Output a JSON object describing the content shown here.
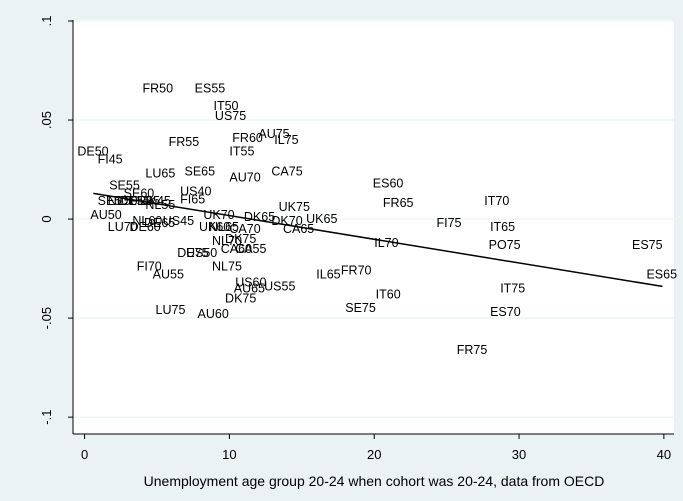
{
  "chart_data": {
    "type": "scatter",
    "title": "",
    "xlabel": "Unemployment age group 20-24 when cohort was 20-24, data from OECD",
    "ylabel": "",
    "xlim": [
      -0.8,
      40.7
    ],
    "ylim": [
      -0.1085,
      0.1005
    ],
    "xticks": [
      0,
      10,
      20,
      30,
      40
    ],
    "xtick_labels": [
      "0",
      "10",
      "20",
      "30",
      "40"
    ],
    "yticks": [
      -0.1,
      -0.05,
      0,
      0.05,
      0.1
    ],
    "ytick_labels": [
      "-.1",
      "-.05",
      "0",
      ".05",
      ".1"
    ],
    "grid": "horizontal",
    "legend": "none",
    "colors": {
      "background": "#eaf2f3",
      "plot_area": "#ffffff",
      "grid": "#eaf2f3",
      "text": "#000000",
      "line": "#000000"
    },
    "points": [
      {
        "label": "FR50",
        "x": 4.0,
        "y": 0.066
      },
      {
        "label": "ES55",
        "x": 7.6,
        "y": 0.066
      },
      {
        "label": "IT50",
        "x": 8.9,
        "y": 0.057
      },
      {
        "label": "US75",
        "x": 9.0,
        "y": 0.052
      },
      {
        "label": "AU75",
        "x": 12.0,
        "y": 0.043
      },
      {
        "label": "FR55",
        "x": 5.8,
        "y": 0.039
      },
      {
        "label": "FR60",
        "x": 10.2,
        "y": 0.041
      },
      {
        "label": "IT55",
        "x": 10.0,
        "y": 0.034
      },
      {
        "label": "IL75",
        "x": 13.1,
        "y": 0.04
      },
      {
        "label": "CA75",
        "x": 12.9,
        "y": 0.024
      },
      {
        "label": "DE50",
        "x": -0.5,
        "y": 0.034
      },
      {
        "label": "FI45",
        "x": 0.9,
        "y": 0.03
      },
      {
        "label": "LU65",
        "x": 4.2,
        "y": 0.023
      },
      {
        "label": "SE65",
        "x": 6.9,
        "y": 0.024
      },
      {
        "label": "AU70",
        "x": 10.0,
        "y": 0.021
      },
      {
        "label": "ES60",
        "x": 19.9,
        "y": 0.018
      },
      {
        "label": "SE55",
        "x": 1.7,
        "y": 0.017
      },
      {
        "label": "SE60",
        "x": 2.7,
        "y": 0.013
      },
      {
        "label": "US40",
        "x": 6.6,
        "y": 0.014
      },
      {
        "label": "FI65",
        "x": 6.6,
        "y": 0.01
      },
      {
        "label": "SE50",
        "x": 0.9,
        "y": 0.009
      },
      {
        "label": "NL50",
        "x": 1.6,
        "y": 0.009
      },
      {
        "label": "DE55",
        "x": 2.4,
        "y": 0.009
      },
      {
        "label": "FR35",
        "x": 3.1,
        "y": 0.009
      },
      {
        "label": "DK45",
        "x": 3.8,
        "y": 0.009
      },
      {
        "label": "NL55",
        "x": 4.2,
        "y": 0.007
      },
      {
        "label": "FR65",
        "x": 20.6,
        "y": 0.008
      },
      {
        "label": "IT70",
        "x": 27.6,
        "y": 0.009
      },
      {
        "label": "AU50",
        "x": 0.4,
        "y": 0.002
      },
      {
        "label": "LU70",
        "x": 1.6,
        "y": -0.004
      },
      {
        "label": "DE60",
        "x": 3.1,
        "y": -0.004
      },
      {
        "label": "NL60",
        "x": 3.3,
        "y": -0.001
      },
      {
        "label": "DE65",
        "x": 4.1,
        "y": -0.002
      },
      {
        "label": "US45",
        "x": 5.4,
        "y": -0.001
      },
      {
        "label": "UK70",
        "x": 8.2,
        "y": 0.002
      },
      {
        "label": "DK65",
        "x": 11.0,
        "y": 0.001
      },
      {
        "label": "UK75",
        "x": 13.4,
        "y": 0.006
      },
      {
        "label": "UK65",
        "x": 15.3,
        "y": 0.0
      },
      {
        "label": "DK70",
        "x": 12.9,
        "y": -0.001
      },
      {
        "label": "UK60",
        "x": 7.9,
        "y": -0.004
      },
      {
        "label": "NL65",
        "x": 8.6,
        "y": -0.004
      },
      {
        "label": "CA70",
        "x": 10.0,
        "y": -0.005
      },
      {
        "label": "CA65",
        "x": 13.7,
        "y": -0.005
      },
      {
        "label": "FI75",
        "x": 24.3,
        "y": -0.002
      },
      {
        "label": "IT65",
        "x": 28.0,
        "y": -0.004
      },
      {
        "label": "NL70",
        "x": 8.8,
        "y": -0.011
      },
      {
        "label": "DK75",
        "x": 9.7,
        "y": -0.01
      },
      {
        "label": "DE75",
        "x": 6.4,
        "y": -0.017
      },
      {
        "label": "US50",
        "x": 7.0,
        "y": -0.017
      },
      {
        "label": "CA60",
        "x": 9.4,
        "y": -0.015
      },
      {
        "label": "CA55",
        "x": 10.4,
        "y": -0.015
      },
      {
        "label": "IL70",
        "x": 20.0,
        "y": -0.012
      },
      {
        "label": "PO75",
        "x": 27.9,
        "y": -0.013
      },
      {
        "label": "ES75",
        "x": 37.8,
        "y": -0.013
      },
      {
        "label": "FI70",
        "x": 3.6,
        "y": -0.024
      },
      {
        "label": "AU55",
        "x": 4.7,
        "y": -0.028
      },
      {
        "label": "NL75",
        "x": 8.8,
        "y": -0.024
      },
      {
        "label": "IL65",
        "x": 16.0,
        "y": -0.028
      },
      {
        "label": "FR70",
        "x": 17.7,
        "y": -0.026
      },
      {
        "label": "ES65",
        "x": 38.8,
        "y": -0.028
      },
      {
        "label": "US60",
        "x": 10.4,
        "y": -0.032
      },
      {
        "label": "AU65",
        "x": 10.3,
        "y": -0.035
      },
      {
        "label": "US55",
        "x": 12.4,
        "y": -0.034
      },
      {
        "label": "DK75",
        "x": 9.7,
        "y": -0.04
      },
      {
        "label": "IT60",
        "x": 20.1,
        "y": -0.038
      },
      {
        "label": "IT75",
        "x": 28.7,
        "y": -0.035
      },
      {
        "label": "LU75",
        "x": 4.9,
        "y": -0.046
      },
      {
        "label": "AU60",
        "x": 7.8,
        "y": -0.048
      },
      {
        "label": "SE75",
        "x": 18.0,
        "y": -0.045
      },
      {
        "label": "ES70",
        "x": 28.0,
        "y": -0.047
      },
      {
        "label": "FR75",
        "x": 25.7,
        "y": -0.066
      }
    ],
    "fit_line": {
      "x": [
        0.6,
        39.9
      ],
      "y": [
        0.013,
        -0.034
      ]
    }
  }
}
